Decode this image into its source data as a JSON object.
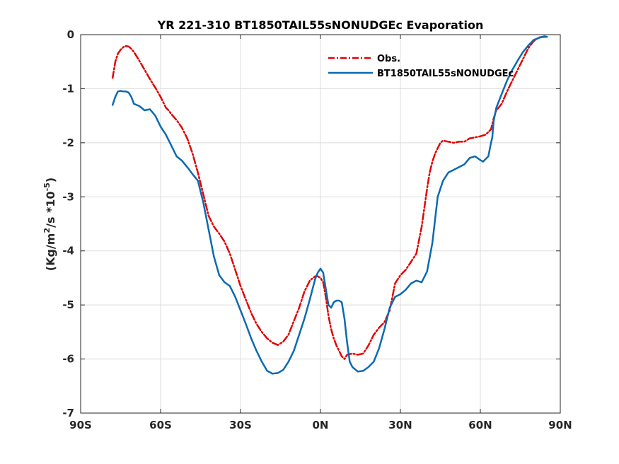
{
  "chart_data": {
    "type": "line",
    "title": "YR 221-310 BT1850TAIL55sNONUDGEc Evaporation",
    "xlabel": "",
    "ylabel": "(Kg/m2/s *10-5)",
    "ylabel_parts": {
      "a": "(Kg/m",
      "b": "2",
      "c": "/s *10",
      "d": "-5",
      "e": ")"
    },
    "xlim": [
      -90,
      90
    ],
    "ylim": [
      -7,
      0
    ],
    "xticks": [
      -90,
      -60,
      -30,
      0,
      30,
      60,
      90
    ],
    "xtick_labels": [
      "90S",
      "60S",
      "30S",
      "0N",
      "30N",
      "60N",
      "90N"
    ],
    "yticks": [
      0,
      -1,
      -2,
      -3,
      -4,
      -5,
      -6,
      -7
    ],
    "ytick_labels": [
      "0",
      "-1",
      "-2",
      "-3",
      "-4",
      "-5",
      "-6",
      "-7"
    ],
    "grid": true,
    "legend_position": "top-right",
    "series": [
      {
        "name": "Obs.",
        "color": "#e60000",
        "style": "dash-dot",
        "x": [
          -78,
          -77,
          -76,
          -75,
          -74,
          -73,
          -72,
          -71,
          -70,
          -68,
          -66,
          -64,
          -62,
          -60,
          -58,
          -57,
          -56,
          -54,
          -52,
          -50,
          -48,
          -46,
          -44,
          -42,
          -40,
          -38,
          -36,
          -34,
          -32,
          -30,
          -28,
          -26,
          -24,
          -22,
          -20,
          -18,
          -16,
          -14,
          -12,
          -10,
          -8,
          -6,
          -4,
          -2,
          -1,
          0,
          1,
          2,
          3,
          4,
          5,
          6,
          7,
          8,
          9,
          10,
          12,
          14,
          16,
          18,
          20,
          22,
          24,
          26,
          28,
          30,
          32,
          34,
          36,
          38,
          40,
          41,
          42,
          43,
          44,
          45,
          46,
          48,
          50,
          52,
          54,
          56,
          58,
          60,
          62,
          64,
          65,
          66,
          68,
          70,
          72,
          74,
          76,
          78,
          80,
          82,
          84,
          85
        ],
        "y": [
          -0.8,
          -0.5,
          -0.35,
          -0.28,
          -0.23,
          -0.21,
          -0.22,
          -0.26,
          -0.32,
          -0.48,
          -0.65,
          -0.82,
          -0.98,
          -1.15,
          -1.35,
          -1.4,
          -1.47,
          -1.58,
          -1.72,
          -1.92,
          -2.2,
          -2.55,
          -2.95,
          -3.35,
          -3.55,
          -3.68,
          -3.83,
          -4.05,
          -4.35,
          -4.65,
          -4.9,
          -5.15,
          -5.35,
          -5.5,
          -5.62,
          -5.7,
          -5.74,
          -5.68,
          -5.55,
          -5.3,
          -5.05,
          -4.75,
          -4.55,
          -4.47,
          -4.47,
          -4.5,
          -4.58,
          -4.85,
          -5.2,
          -5.45,
          -5.62,
          -5.75,
          -5.85,
          -5.95,
          -6.0,
          -5.92,
          -5.9,
          -5.92,
          -5.9,
          -5.75,
          -5.55,
          -5.42,
          -5.32,
          -5.1,
          -4.6,
          -4.45,
          -4.35,
          -4.2,
          -4.05,
          -3.55,
          -2.85,
          -2.55,
          -2.35,
          -2.2,
          -2.1,
          -2.0,
          -1.96,
          -1.98,
          -2.0,
          -1.98,
          -1.98,
          -1.92,
          -1.9,
          -1.88,
          -1.85,
          -1.75,
          -1.55,
          -1.4,
          -1.28,
          -1.05,
          -0.85,
          -0.65,
          -0.45,
          -0.25,
          -0.12,
          -0.05,
          -0.04,
          -0.04
        ]
      },
      {
        "name": "BT1850TAIL55sNONUDGEc",
        "color": "#0c6ab0",
        "style": "solid",
        "x": [
          -78,
          -77,
          -76,
          -75,
          -74,
          -73,
          -72,
          -71,
          -70,
          -68,
          -66,
          -64,
          -62,
          -60,
          -58,
          -56,
          -54,
          -52,
          -50,
          -48,
          -46,
          -44,
          -42,
          -40,
          -38,
          -36,
          -34,
          -32,
          -30,
          -28,
          -26,
          -24,
          -22,
          -20,
          -18,
          -16,
          -14,
          -12,
          -10,
          -8,
          -6,
          -4,
          -2,
          -1,
          0,
          1,
          2,
          3,
          4,
          5,
          6,
          7,
          8,
          9,
          10,
          11,
          12,
          14,
          16,
          18,
          20,
          22,
          24,
          26,
          28,
          30,
          32,
          34,
          36,
          38,
          40,
          42,
          44,
          46,
          48,
          50,
          52,
          54,
          56,
          58,
          60,
          61,
          62,
          63,
          64,
          64.5,
          65,
          66,
          68,
          70,
          72,
          74,
          76,
          78,
          80,
          82,
          84,
          85
        ],
        "y": [
          -1.3,
          -1.15,
          -1.05,
          -1.04,
          -1.05,
          -1.05,
          -1.07,
          -1.15,
          -1.28,
          -1.32,
          -1.4,
          -1.38,
          -1.5,
          -1.7,
          -1.85,
          -2.05,
          -2.25,
          -2.33,
          -2.45,
          -2.58,
          -2.7,
          -3.1,
          -3.6,
          -4.1,
          -4.45,
          -4.58,
          -4.65,
          -4.85,
          -5.1,
          -5.35,
          -5.62,
          -5.85,
          -6.05,
          -6.22,
          -6.27,
          -6.26,
          -6.2,
          -6.05,
          -5.85,
          -5.55,
          -5.25,
          -4.9,
          -4.52,
          -4.4,
          -4.33,
          -4.4,
          -4.7,
          -5.0,
          -5.05,
          -4.95,
          -4.92,
          -4.92,
          -4.95,
          -5.25,
          -5.7,
          -6.05,
          -6.15,
          -6.23,
          -6.22,
          -6.15,
          -6.05,
          -5.8,
          -5.45,
          -5.05,
          -4.85,
          -4.8,
          -4.72,
          -4.6,
          -4.55,
          -4.58,
          -4.38,
          -3.85,
          -3.0,
          -2.7,
          -2.55,
          -2.5,
          -2.45,
          -2.4,
          -2.28,
          -2.25,
          -2.32,
          -2.35,
          -2.3,
          -2.25,
          -2.0,
          -1.9,
          -1.6,
          -1.35,
          -1.1,
          -0.85,
          -0.65,
          -0.48,
          -0.32,
          -0.2,
          -0.1,
          -0.06,
          -0.03,
          -0.04
        ]
      }
    ]
  }
}
